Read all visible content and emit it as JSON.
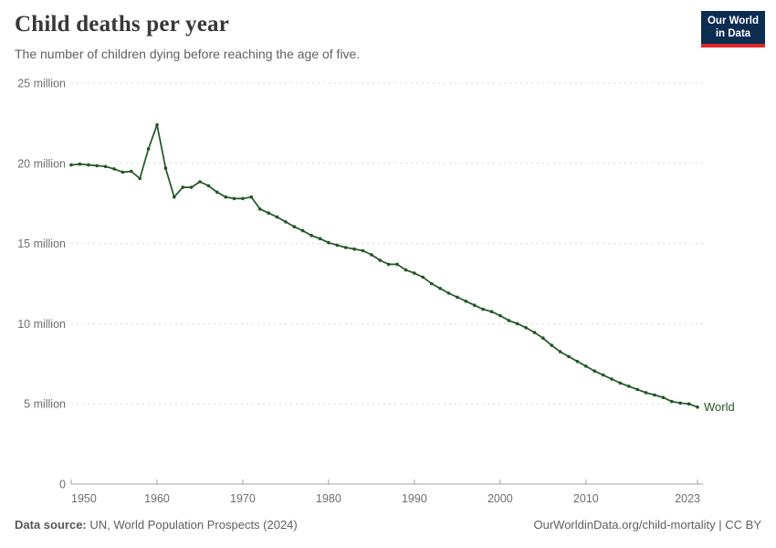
{
  "header": {
    "title": "Child deaths per year",
    "subtitle": "The number of children dying before reaching the age of five.",
    "logo": {
      "line1": "Our World",
      "line2": "in Data",
      "bg_color": "#0c2c52",
      "bar_color": "#e0262c"
    }
  },
  "footer": {
    "source_label": "Data source:",
    "source_value": "UN, World Population Prospects (2024)",
    "link": "OurWorldinData.org/child-mortality | CC BY"
  },
  "chart_data": {
    "type": "line",
    "title": "Child deaths per year",
    "subtitle": "The number of children dying before reaching the age of five.",
    "xlabel": "",
    "ylabel": "",
    "unit": "million deaths",
    "xlim": [
      1950,
      2023
    ],
    "ylim": [
      0,
      25
    ],
    "grid": "horizontal-dashed",
    "legend": "inline-end-label",
    "x_ticks": [
      1950,
      1960,
      1970,
      1980,
      1990,
      2000,
      2010,
      2023
    ],
    "y_ticks": [
      {
        "value": 0,
        "label": "0"
      },
      {
        "value": 5,
        "label": "5 million"
      },
      {
        "value": 10,
        "label": "10 million"
      },
      {
        "value": 15,
        "label": "15 million"
      },
      {
        "value": 20,
        "label": "20 million"
      },
      {
        "value": 25,
        "label": "25 million"
      }
    ],
    "series": [
      {
        "name": "World",
        "color": "#1f5724",
        "years": [
          1950,
          1951,
          1952,
          1953,
          1954,
          1955,
          1956,
          1957,
          1958,
          1959,
          1960,
          1961,
          1962,
          1963,
          1964,
          1965,
          1966,
          1967,
          1968,
          1969,
          1970,
          1971,
          1972,
          1973,
          1974,
          1975,
          1976,
          1977,
          1978,
          1979,
          1980,
          1981,
          1982,
          1983,
          1984,
          1985,
          1986,
          1987,
          1988,
          1989,
          1990,
          1991,
          1992,
          1993,
          1994,
          1995,
          1996,
          1997,
          1998,
          1999,
          2000,
          2001,
          2002,
          2003,
          2004,
          2005,
          2006,
          2007,
          2008,
          2009,
          2010,
          2011,
          2012,
          2013,
          2014,
          2015,
          2016,
          2017,
          2018,
          2019,
          2020,
          2021,
          2022,
          2023
        ],
        "values": [
          19.9,
          19.95,
          19.9,
          19.85,
          19.8,
          19.65,
          19.45,
          19.5,
          19.05,
          20.9,
          22.4,
          19.7,
          17.9,
          18.5,
          18.5,
          18.85,
          18.6,
          18.2,
          17.9,
          17.8,
          17.8,
          17.9,
          17.15,
          16.9,
          16.65,
          16.35,
          16.05,
          15.8,
          15.5,
          15.3,
          15.05,
          14.9,
          14.75,
          14.65,
          14.55,
          14.3,
          13.95,
          13.7,
          13.7,
          13.35,
          13.15,
          12.9,
          12.5,
          12.2,
          11.9,
          11.65,
          11.4,
          11.15,
          10.9,
          10.75,
          10.5,
          10.2,
          10.0,
          9.75,
          9.45,
          9.1,
          8.65,
          8.25,
          7.95,
          7.65,
          7.35,
          7.05,
          6.8,
          6.55,
          6.3,
          6.1,
          5.9,
          5.7,
          5.55,
          5.4,
          5.15,
          5.05,
          5.0,
          4.8
        ]
      }
    ]
  }
}
